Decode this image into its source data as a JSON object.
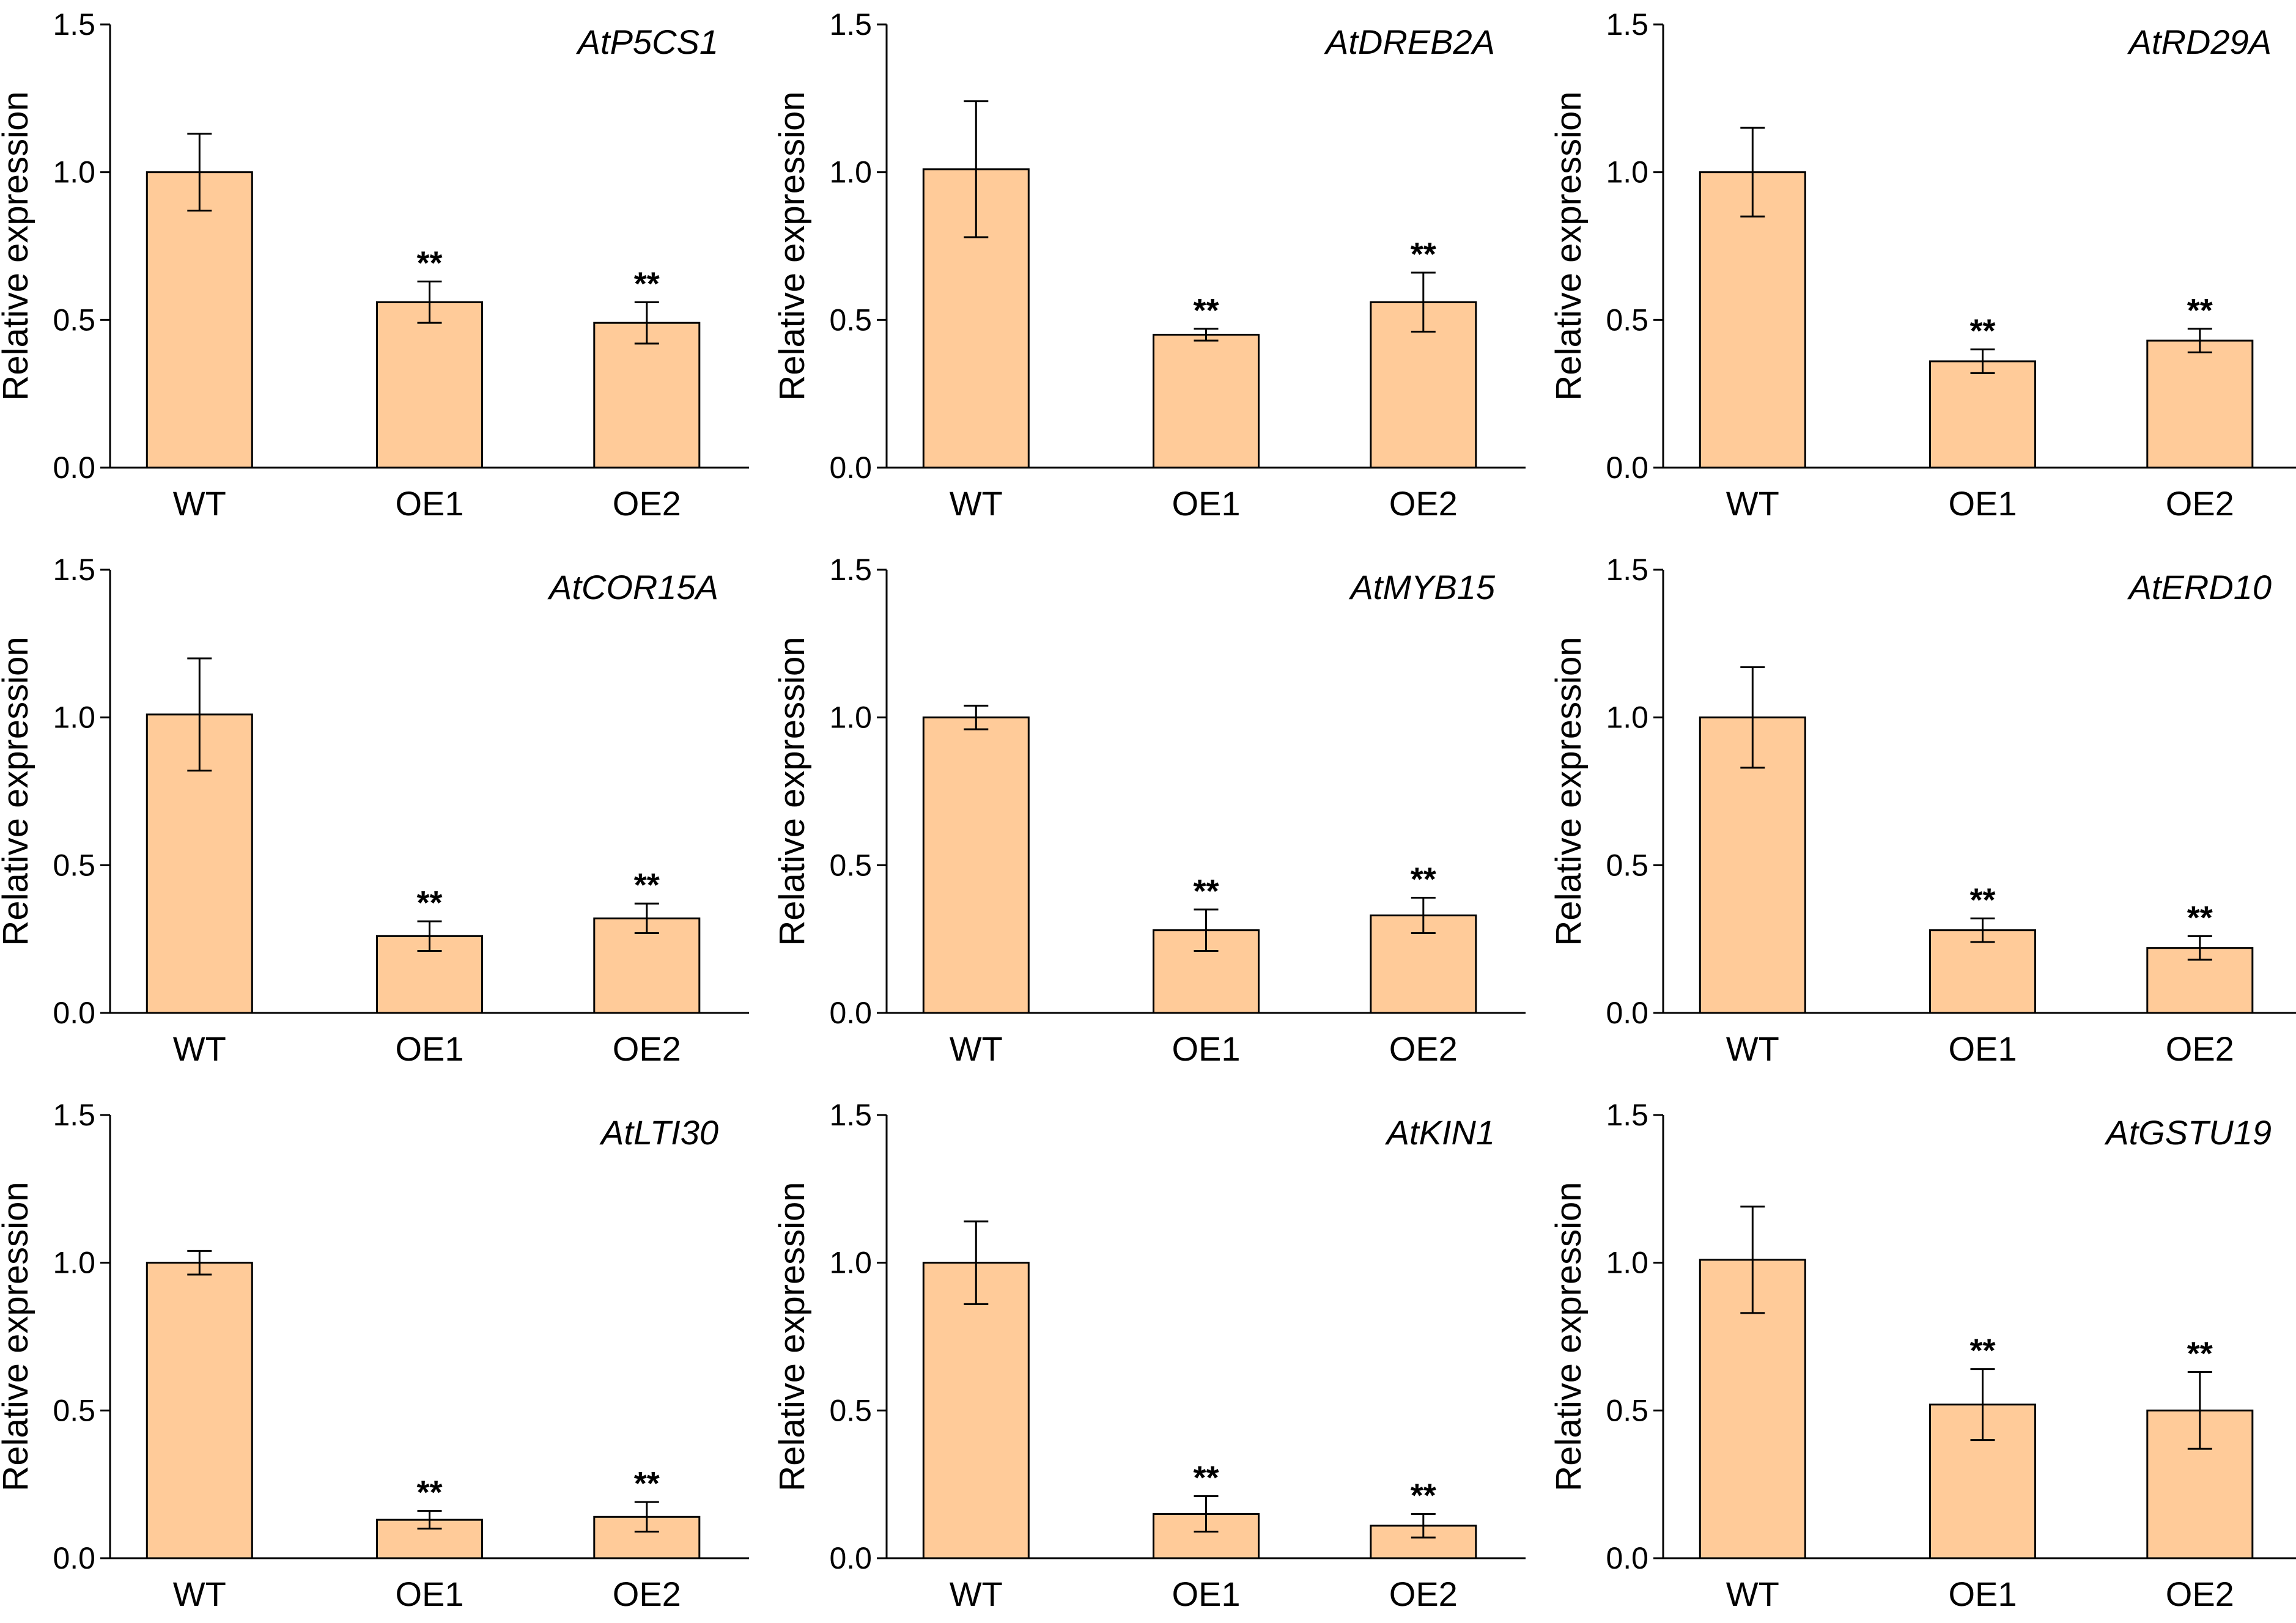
{
  "chart_data": [
    {
      "type": "bar",
      "title": "AtP5CS1",
      "xlabel": "",
      "ylabel": "Relative expression",
      "ylim": [
        0,
        1.5
      ],
      "yticks": [
        0.0,
        0.5,
        1.0,
        1.5
      ],
      "ytick_labels": [
        "0.0",
        "0.5",
        "1.0",
        "1.5"
      ],
      "categories": [
        "WT",
        "OE1",
        "OE2"
      ],
      "values": [
        1.0,
        0.56,
        0.49
      ],
      "errors": [
        0.13,
        0.07,
        0.07
      ],
      "significance": [
        "",
        "**",
        "**"
      ],
      "bar_color": "#FFCB99"
    },
    {
      "type": "bar",
      "title": "AtDREB2A",
      "xlabel": "",
      "ylabel": "Relative expression",
      "ylim": [
        0,
        1.5
      ],
      "yticks": [
        0.0,
        0.5,
        1.0,
        1.5
      ],
      "ytick_labels": [
        "0.0",
        "0.5",
        "1.0",
        "1.5"
      ],
      "categories": [
        "WT",
        "OE1",
        "OE2"
      ],
      "values": [
        1.01,
        0.45,
        0.56
      ],
      "errors": [
        0.23,
        0.02,
        0.1
      ],
      "significance": [
        "",
        "**",
        "**"
      ],
      "bar_color": "#FFCB99"
    },
    {
      "type": "bar",
      "title": "AtRD29A",
      "xlabel": "",
      "ylabel": "Relative expression",
      "ylim": [
        0,
        1.5
      ],
      "yticks": [
        0.0,
        0.5,
        1.0,
        1.5
      ],
      "ytick_labels": [
        "0.0",
        "0.5",
        "1.0",
        "1.5"
      ],
      "categories": [
        "WT",
        "OE1",
        "OE2"
      ],
      "values": [
        1.0,
        0.36,
        0.43
      ],
      "errors": [
        0.15,
        0.04,
        0.04
      ],
      "significance": [
        "",
        "**",
        "**"
      ],
      "bar_color": "#FFCB99"
    },
    {
      "type": "bar",
      "title": "AtCOR15A",
      "xlabel": "",
      "ylabel": "Relative expression",
      "ylim": [
        0,
        1.5
      ],
      "yticks": [
        0.0,
        0.5,
        1.0,
        1.5
      ],
      "ytick_labels": [
        "0.0",
        "0.5",
        "1.0",
        "1.5"
      ],
      "categories": [
        "WT",
        "OE1",
        "OE2"
      ],
      "values": [
        1.01,
        0.26,
        0.32
      ],
      "errors": [
        0.19,
        0.05,
        0.05
      ],
      "significance": [
        "",
        "**",
        "**"
      ],
      "bar_color": "#FFCB99"
    },
    {
      "type": "bar",
      "title": "AtMYB15",
      "xlabel": "",
      "ylabel": "Relative expression",
      "ylim": [
        0,
        1.5
      ],
      "yticks": [
        0.0,
        0.5,
        1.0,
        1.5
      ],
      "ytick_labels": [
        "0.0",
        "0.5",
        "1.0",
        "1.5"
      ],
      "categories": [
        "WT",
        "OE1",
        "OE2"
      ],
      "values": [
        1.0,
        0.28,
        0.33
      ],
      "errors": [
        0.04,
        0.07,
        0.06
      ],
      "significance": [
        "",
        "**",
        "**"
      ],
      "bar_color": "#FFCB99"
    },
    {
      "type": "bar",
      "title": "AtERD10",
      "xlabel": "",
      "ylabel": "Relative expression",
      "ylim": [
        0,
        1.5
      ],
      "yticks": [
        0.0,
        0.5,
        1.0,
        1.5
      ],
      "ytick_labels": [
        "0.0",
        "0.5",
        "1.0",
        "1.5"
      ],
      "categories": [
        "WT",
        "OE1",
        "OE2"
      ],
      "values": [
        1.0,
        0.28,
        0.22
      ],
      "errors": [
        0.17,
        0.04,
        0.04
      ],
      "significance": [
        "",
        "**",
        "**"
      ],
      "bar_color": "#FFCB99"
    },
    {
      "type": "bar",
      "title": "AtLTI30",
      "xlabel": "",
      "ylabel": "Relative expression",
      "ylim": [
        0,
        1.5
      ],
      "yticks": [
        0.0,
        0.5,
        1.0,
        1.5
      ],
      "ytick_labels": [
        "0.0",
        "0.5",
        "1.0",
        "1.5"
      ],
      "categories": [
        "WT",
        "OE1",
        "OE2"
      ],
      "values": [
        1.0,
        0.13,
        0.14
      ],
      "errors": [
        0.04,
        0.03,
        0.05
      ],
      "significance": [
        "",
        "**",
        "**"
      ],
      "bar_color": "#FFCB99"
    },
    {
      "type": "bar",
      "title": "AtKIN1",
      "xlabel": "",
      "ylabel": "Relative expression",
      "ylim": [
        0,
        1.5
      ],
      "yticks": [
        0.0,
        0.5,
        1.0,
        1.5
      ],
      "ytick_labels": [
        "0.0",
        "0.5",
        "1.0",
        "1.5"
      ],
      "categories": [
        "WT",
        "OE1",
        "OE2"
      ],
      "values": [
        1.0,
        0.15,
        0.11
      ],
      "errors": [
        0.14,
        0.06,
        0.04
      ],
      "significance": [
        "",
        "**",
        "**"
      ],
      "bar_color": "#FFCB99"
    },
    {
      "type": "bar",
      "title": "AtGSTU19",
      "xlabel": "",
      "ylabel": "Relative expression",
      "ylim": [
        0,
        1.5
      ],
      "yticks": [
        0.0,
        0.5,
        1.0,
        1.5
      ],
      "ytick_labels": [
        "0.0",
        "0.5",
        "1.0",
        "1.5"
      ],
      "categories": [
        "WT",
        "OE1",
        "OE2"
      ],
      "values": [
        1.01,
        0.52,
        0.5
      ],
      "errors": [
        0.18,
        0.12,
        0.13
      ],
      "significance": [
        "",
        "**",
        "**"
      ],
      "bar_color": "#FFCB99"
    }
  ]
}
